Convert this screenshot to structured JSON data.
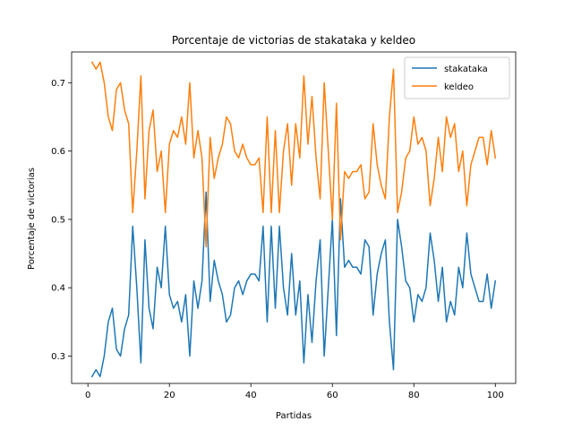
{
  "chart_data": {
    "type": "line",
    "title": "Porcentaje de victorias de stakataka y keldeo",
    "xlabel": "Partidas",
    "ylabel": "Porcentaje de victorias",
    "xlim": [
      -4,
      105
    ],
    "ylim": [
      0.26,
      0.745
    ],
    "xticks": [
      0,
      20,
      40,
      60,
      80,
      100
    ],
    "yticks": [
      0.3,
      0.4,
      0.5,
      0.6,
      0.7
    ],
    "grid": false,
    "legend_position": "top-right",
    "x": [
      1,
      2,
      3,
      4,
      5,
      6,
      7,
      8,
      9,
      10,
      11,
      12,
      13,
      14,
      15,
      16,
      17,
      18,
      19,
      20,
      21,
      22,
      23,
      24,
      25,
      26,
      27,
      28,
      29,
      30,
      31,
      32,
      33,
      34,
      35,
      36,
      37,
      38,
      39,
      40,
      41,
      42,
      43,
      44,
      45,
      46,
      47,
      48,
      49,
      50,
      51,
      52,
      53,
      54,
      55,
      56,
      57,
      58,
      59,
      60,
      61,
      62,
      63,
      64,
      65,
      66,
      67,
      68,
      69,
      70,
      71,
      72,
      73,
      74,
      75,
      76,
      77,
      78,
      79,
      80,
      81,
      82,
      83,
      84,
      85,
      86,
      87,
      88,
      89,
      90,
      91,
      92,
      93,
      94,
      95,
      96,
      97,
      98,
      99,
      100
    ],
    "series": [
      {
        "name": "stakataka",
        "color": "#1f77b4",
        "values": [
          0.27,
          0.28,
          0.27,
          0.3,
          0.35,
          0.37,
          0.31,
          0.3,
          0.34,
          0.36,
          0.49,
          0.4,
          0.29,
          0.47,
          0.37,
          0.34,
          0.43,
          0.4,
          0.49,
          0.39,
          0.37,
          0.38,
          0.35,
          0.39,
          0.3,
          0.41,
          0.37,
          0.41,
          0.54,
          0.38,
          0.44,
          0.41,
          0.39,
          0.35,
          0.36,
          0.4,
          0.41,
          0.39,
          0.41,
          0.42,
          0.42,
          0.41,
          0.49,
          0.35,
          0.49,
          0.37,
          0.49,
          0.4,
          0.36,
          0.45,
          0.36,
          0.41,
          0.29,
          0.39,
          0.32,
          0.41,
          0.47,
          0.3,
          0.4,
          0.5,
          0.33,
          0.53,
          0.43,
          0.44,
          0.43,
          0.43,
          0.42,
          0.47,
          0.46,
          0.36,
          0.42,
          0.45,
          0.47,
          0.35,
          0.28,
          0.5,
          0.46,
          0.41,
          0.4,
          0.35,
          0.39,
          0.38,
          0.4,
          0.48,
          0.44,
          0.38,
          0.43,
          0.35,
          0.38,
          0.36,
          0.43,
          0.4,
          0.48,
          0.42,
          0.4,
          0.38,
          0.38,
          0.42,
          0.37,
          0.41
        ]
      },
      {
        "name": "keldeo",
        "color": "#ff7f0e",
        "values": [
          0.73,
          0.72,
          0.73,
          0.7,
          0.65,
          0.63,
          0.69,
          0.7,
          0.66,
          0.64,
          0.51,
          0.6,
          0.71,
          0.53,
          0.63,
          0.66,
          0.57,
          0.6,
          0.51,
          0.61,
          0.63,
          0.62,
          0.65,
          0.61,
          0.7,
          0.59,
          0.63,
          0.59,
          0.46,
          0.62,
          0.56,
          0.59,
          0.61,
          0.65,
          0.64,
          0.6,
          0.59,
          0.61,
          0.59,
          0.58,
          0.58,
          0.59,
          0.51,
          0.65,
          0.51,
          0.63,
          0.51,
          0.6,
          0.64,
          0.55,
          0.64,
          0.59,
          0.71,
          0.61,
          0.68,
          0.59,
          0.53,
          0.7,
          0.6,
          0.5,
          0.67,
          0.47,
          0.57,
          0.56,
          0.57,
          0.57,
          0.58,
          0.53,
          0.54,
          0.64,
          0.58,
          0.55,
          0.53,
          0.65,
          0.72,
          0.51,
          0.54,
          0.59,
          0.6,
          0.65,
          0.61,
          0.62,
          0.6,
          0.52,
          0.56,
          0.62,
          0.57,
          0.65,
          0.62,
          0.64,
          0.57,
          0.6,
          0.52,
          0.58,
          0.6,
          0.62,
          0.62,
          0.58,
          0.63,
          0.59
        ]
      }
    ]
  }
}
